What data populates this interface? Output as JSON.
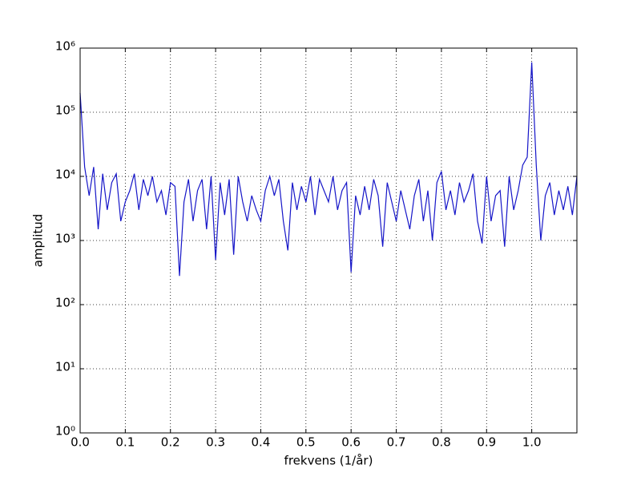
{
  "chart_data": {
    "type": "line",
    "xlabel": "frekvens (1/år)",
    "ylabel": "amplitud",
    "x": [
      0.0,
      0.01,
      0.02,
      0.03,
      0.04,
      0.05,
      0.06,
      0.07,
      0.08,
      0.09,
      0.1,
      0.11,
      0.12,
      0.13,
      0.14,
      0.15,
      0.16,
      0.17,
      0.18,
      0.19,
      0.2,
      0.21,
      0.22,
      0.23,
      0.24,
      0.25,
      0.26,
      0.27,
      0.28,
      0.29,
      0.3,
      0.31,
      0.32,
      0.33,
      0.34,
      0.35,
      0.36,
      0.37,
      0.38,
      0.39,
      0.4,
      0.41,
      0.42,
      0.43,
      0.44,
      0.45,
      0.46,
      0.47,
      0.48,
      0.49,
      0.5,
      0.51,
      0.52,
      0.53,
      0.54,
      0.55,
      0.56,
      0.57,
      0.58,
      0.59,
      0.6,
      0.61,
      0.62,
      0.63,
      0.64,
      0.65,
      0.66,
      0.67,
      0.68,
      0.69,
      0.7,
      0.71,
      0.72,
      0.73,
      0.74,
      0.75,
      0.76,
      0.77,
      0.78,
      0.79,
      0.8,
      0.81,
      0.82,
      0.83,
      0.84,
      0.85,
      0.86,
      0.87,
      0.88,
      0.89,
      0.9,
      0.91,
      0.92,
      0.93,
      0.94,
      0.95,
      0.96,
      0.97,
      0.98,
      0.99,
      1.0,
      1.01,
      1.02,
      1.03,
      1.04,
      1.05,
      1.06,
      1.07,
      1.08,
      1.09,
      1.1
    ],
    "series": [
      {
        "name": "amplitud",
        "color": "#1515c8",
        "values": [
          200000,
          14000,
          5000,
          14000,
          1500,
          11000,
          3000,
          8000,
          11000,
          2000,
          4000,
          6000,
          11000,
          3000,
          9000,
          5000,
          10000,
          4000,
          6000,
          2500,
          8000,
          7000,
          280,
          4000,
          9000,
          2000,
          6000,
          9000,
          1500,
          10000,
          500,
          8000,
          2500,
          9000,
          600,
          10000,
          4000,
          2000,
          5000,
          3000,
          2000,
          6000,
          10000,
          5000,
          9000,
          2000,
          700,
          8000,
          3000,
          7000,
          4000,
          10000,
          2500,
          9000,
          6000,
          4000,
          10000,
          3000,
          6000,
          8000,
          320,
          5000,
          2500,
          7000,
          3000,
          9000,
          5000,
          800,
          8000,
          4000,
          2000,
          6000,
          3000,
          1500,
          5000,
          9000,
          2000,
          6000,
          1000,
          8000,
          12000,
          3000,
          6000,
          2500,
          8000,
          4000,
          6000,
          11000,
          2000,
          900,
          10000,
          2000,
          5000,
          6000,
          800,
          10000,
          3000,
          6000,
          15000,
          20000,
          600000,
          15000,
          1000,
          5000,
          8000,
          2500,
          6000,
          3000,
          7000,
          2500,
          10000
        ]
      }
    ],
    "xlim": [
      0,
      1.1
    ],
    "xticks": [
      {
        "value": 0,
        "label": "0.0"
      },
      0.1,
      0.2,
      0.3,
      0.4,
      0.5,
      0.6,
      0.7,
      0.8,
      0.9,
      {
        "value": 1,
        "label": "1.0"
      }
    ],
    "ylim": [
      1,
      1000000
    ],
    "log_y": true,
    "yticks": [
      {
        "value": 1,
        "label": "10⁰"
      },
      {
        "value": 10,
        "label": "10¹"
      },
      {
        "value": 100,
        "label": "10²"
      },
      {
        "value": 1000,
        "label": "10³"
      },
      {
        "value": 10000,
        "label": "10⁴"
      },
      {
        "value": 100000,
        "label": "10⁵"
      },
      {
        "value": 1000000,
        "label": "10⁶"
      }
    ],
    "grid": true
  }
}
